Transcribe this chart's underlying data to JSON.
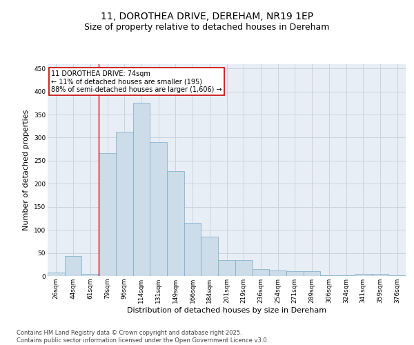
{
  "title1": "11, DOROTHEA DRIVE, DEREHAM, NR19 1EP",
  "title2": "Size of property relative to detached houses in Dereham",
  "xlabel": "Distribution of detached houses by size in Dereham",
  "ylabel": "Number of detached properties",
  "categories": [
    "26sqm",
    "44sqm",
    "61sqm",
    "79sqm",
    "96sqm",
    "114sqm",
    "131sqm",
    "149sqm",
    "166sqm",
    "184sqm",
    "201sqm",
    "219sqm",
    "236sqm",
    "254sqm",
    "271sqm",
    "289sqm",
    "306sqm",
    "324sqm",
    "341sqm",
    "359sqm",
    "376sqm"
  ],
  "values": [
    7,
    44,
    5,
    267,
    312,
    375,
    290,
    228,
    115,
    85,
    35,
    35,
    15,
    12,
    10,
    10,
    2,
    2,
    5,
    5,
    2
  ],
  "bar_color": "#ccdce8",
  "bar_edge_color": "#7aaac8",
  "bar_edge_width": 0.5,
  "annotation_text": "11 DOROTHEA DRIVE: 74sqm\n← 11% of detached houses are smaller (195)\n88% of semi-detached houses are larger (1,606) →",
  "annotation_box_color": "#ffffff",
  "annotation_box_edge": "#cc0000",
  "line_color": "#cc0000",
  "ylim": [
    0,
    460
  ],
  "yticks": [
    0,
    50,
    100,
    150,
    200,
    250,
    300,
    350,
    400,
    450
  ],
  "grid_color": "#c8d4e0",
  "plot_bg": "#e8eef5",
  "footer": "Contains HM Land Registry data © Crown copyright and database right 2025.\nContains public sector information licensed under the Open Government Licence v3.0.",
  "title_fontsize": 10,
  "subtitle_fontsize": 9,
  "tick_fontsize": 6.5,
  "label_fontsize": 8,
  "annotation_fontsize": 7,
  "footer_fontsize": 6
}
